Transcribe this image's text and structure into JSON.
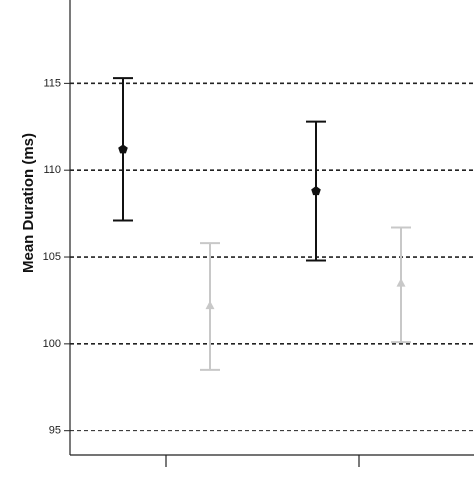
{
  "chart_data": {
    "type": "errorbar",
    "title": "",
    "ylabel": "Mean Duration (ms)",
    "xlabel": "",
    "ylim": [
      93.6,
      119.8
    ],
    "yticks": [
      95,
      100,
      105,
      110,
      115
    ],
    "grid": true,
    "grid_style": "dashed",
    "categories": [
      "",
      ""
    ],
    "series": [
      {
        "color": "#111111",
        "marker": "pentagon",
        "points": [
          {
            "category_index": 0,
            "mean": 111.2,
            "lower": 107.1,
            "upper": 115.3
          },
          {
            "category_index": 1,
            "mean": 108.8,
            "lower": 104.8,
            "upper": 112.8
          }
        ]
      },
      {
        "color": "#c8c8c8",
        "marker": "triangle",
        "points": [
          {
            "category_index": 0,
            "mean": 102.2,
            "lower": 98.5,
            "upper": 105.8
          },
          {
            "category_index": 1,
            "mean": 103.5,
            "lower": 100.1,
            "upper": 106.7
          }
        ]
      }
    ]
  }
}
